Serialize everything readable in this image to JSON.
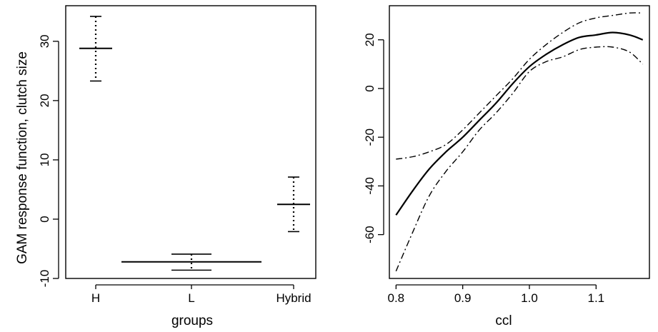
{
  "chart_data": [
    {
      "type": "errorbar",
      "xlabel": "groups",
      "ylabel": "GAM response function, clutch size",
      "categories": [
        "H",
        "L",
        "Hybrid"
      ],
      "estimates": [
        28.8,
        -7.2,
        2.5
      ],
      "lower": [
        23.3,
        -8.6,
        -2.1
      ],
      "upper": [
        34.2,
        -5.9,
        7.1
      ],
      "ylim": [
        -10,
        36
      ],
      "yticks": [
        -10,
        0,
        10,
        20,
        30
      ],
      "ytick_labels": [
        "-10",
        "0",
        "10",
        "20",
        "30"
      ],
      "grid": false,
      "legend": "none"
    },
    {
      "type": "line",
      "xlabel": "ccl",
      "ylabel": "",
      "xlim": [
        0.79,
        1.18
      ],
      "ylim": [
        -78,
        34
      ],
      "xticks": [
        0.8,
        0.9,
        1.0,
        1.1
      ],
      "xtick_labels": [
        "0.8",
        "0.9",
        "1.0",
        "1.1"
      ],
      "yticks": [
        -60,
        -40,
        -20,
        0,
        20
      ],
      "ytick_labels": [
        "-60",
        "-40",
        "-20",
        "0",
        "20"
      ],
      "grid": false,
      "legend": "none",
      "series": [
        {
          "role": "fit",
          "x": [
            0.8,
            0.825,
            0.85,
            0.875,
            0.9,
            0.925,
            0.95,
            0.975,
            1.0,
            1.025,
            1.05,
            1.075,
            1.1,
            1.125,
            1.15,
            1.17
          ],
          "y": [
            -52,
            -42,
            -33,
            -26,
            -20,
            -13,
            -6,
            2,
            9,
            14,
            18,
            21,
            22,
            23,
            22,
            20
          ]
        },
        {
          "role": "upper",
          "x": [
            0.8,
            0.825,
            0.85,
            0.875,
            0.9,
            0.925,
            0.95,
            0.975,
            1.0,
            1.025,
            1.05,
            1.075,
            1.1,
            1.125,
            1.15,
            1.17
          ],
          "y": [
            -29,
            -28,
            -26,
            -23,
            -17,
            -10,
            -3,
            4,
            12,
            18,
            23,
            27,
            29,
            30,
            31,
            31
          ]
        },
        {
          "role": "lower",
          "x": [
            0.8,
            0.825,
            0.85,
            0.875,
            0.9,
            0.925,
            0.95,
            0.975,
            1.0,
            1.025,
            1.05,
            1.075,
            1.1,
            1.125,
            1.15,
            1.17
          ],
          "y": [
            -75,
            -59,
            -44,
            -34,
            -26,
            -17,
            -10,
            -2,
            7,
            11,
            13,
            16,
            17,
            17,
            15,
            10
          ]
        }
      ]
    }
  ]
}
